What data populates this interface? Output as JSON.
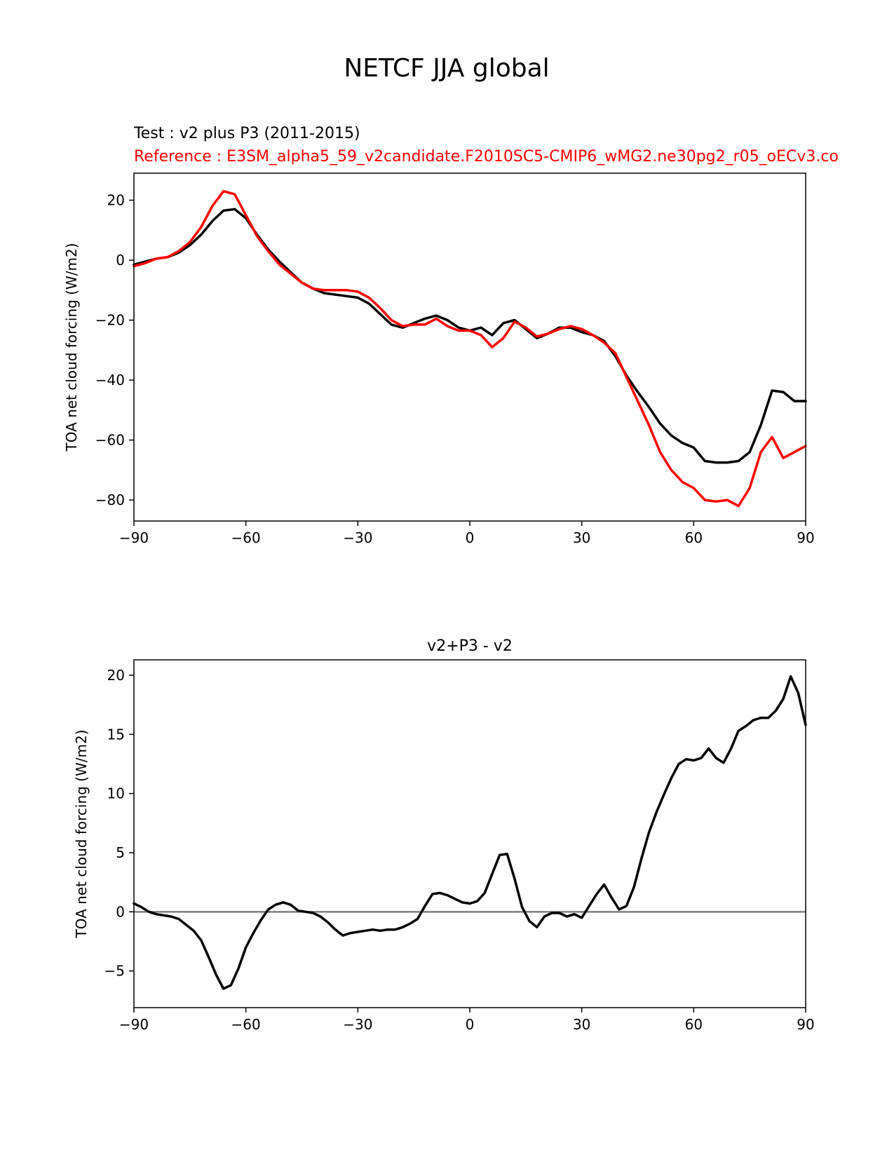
{
  "figure": {
    "title": "NETCF JJA global",
    "test_label": "Test : v2 plus P3 (2011-2015)",
    "reference_label": "Reference : E3SM_alpha5_59_v2candidate.F2010SC5-CMIP6_wMG2.ne30pg2_r05_oECv3.co"
  },
  "colors": {
    "test": "#000000",
    "reference": "#ff0000",
    "zero_line": "#808080",
    "axes": "#000000"
  },
  "chart_data": [
    {
      "type": "line",
      "title": "",
      "xlabel": "",
      "ylabel": "TOA net cloud forcing (W/m2)",
      "xlim": [
        -90,
        90
      ],
      "ylim": [
        -87,
        29
      ],
      "xticks": [
        -90,
        -60,
        -30,
        0,
        30,
        60,
        90
      ],
      "xtick_labels": [
        "−90",
        "−60",
        "−30",
        "0",
        "30",
        "60",
        "90"
      ],
      "yticks": [
        20,
        0,
        -20,
        -40,
        -60,
        -80
      ],
      "ytick_labels": [
        "20",
        "0",
        "−20",
        "−40",
        "−60",
        "−80"
      ],
      "series": [
        {
          "name": "Test",
          "color": "#000000",
          "x": [
            -90,
            -87,
            -84,
            -81,
            -78,
            -75,
            -72,
            -69,
            -66,
            -63,
            -60,
            -57,
            -54,
            -51,
            -48,
            -45,
            -42,
            -39,
            -36,
            -33,
            -30,
            -27,
            -24,
            -21,
            -18,
            -15,
            -12,
            -9,
            -6,
            -3,
            0,
            3,
            6,
            9,
            12,
            15,
            18,
            21,
            24,
            27,
            30,
            33,
            36,
            39,
            42,
            45,
            48,
            51,
            54,
            57,
            60,
            63,
            66,
            69,
            72,
            75,
            78,
            81,
            84,
            87,
            90
          ],
          "y": [
            -1.5,
            -0.5,
            0.5,
            1.0,
            2.5,
            5.0,
            8.5,
            13.0,
            16.5,
            17.0,
            14.0,
            8.5,
            3.5,
            -0.5,
            -4.0,
            -7.5,
            -9.5,
            -11.0,
            -11.5,
            -12.0,
            -12.5,
            -14.5,
            -18.0,
            -21.5,
            -22.5,
            -21.0,
            -19.5,
            -18.5,
            -20.0,
            -22.5,
            -23.5,
            -22.5,
            -25.0,
            -21.0,
            -20.0,
            -23.0,
            -26.0,
            -24.5,
            -22.5,
            -22.5,
            -24.0,
            -25.0,
            -27.0,
            -32.0,
            -38.5,
            -44.0,
            -49.0,
            -54.5,
            -58.5,
            -61.0,
            -62.5,
            -67.0,
            -67.5,
            -67.5,
            -67.0,
            -64.0,
            -55.0,
            -43.5,
            -44.0,
            -47.0,
            -47.0
          ]
        },
        {
          "name": "Reference",
          "color": "#ff0000",
          "x": [
            -90,
            -87,
            -84,
            -81,
            -78,
            -75,
            -72,
            -69,
            -66,
            -63,
            -60,
            -57,
            -54,
            -51,
            -48,
            -45,
            -42,
            -39,
            -36,
            -33,
            -30,
            -27,
            -24,
            -21,
            -18,
            -15,
            -12,
            -9,
            -6,
            -3,
            0,
            3,
            6,
            9,
            12,
            15,
            18,
            21,
            24,
            27,
            30,
            33,
            36,
            39,
            42,
            45,
            48,
            51,
            54,
            57,
            60,
            63,
            66,
            69,
            72,
            75,
            78,
            81,
            84,
            87,
            90
          ],
          "y": [
            -2.0,
            -1.0,
            0.5,
            1.0,
            3.0,
            6.0,
            11.0,
            18.0,
            23.0,
            22.0,
            15.0,
            8.0,
            3.0,
            -1.5,
            -4.5,
            -7.5,
            -9.5,
            -10.0,
            -10.0,
            -10.0,
            -10.5,
            -12.5,
            -16.0,
            -20.0,
            -22.0,
            -21.5,
            -21.5,
            -19.5,
            -22.0,
            -23.5,
            -23.5,
            -25.0,
            -29.0,
            -26.0,
            -20.5,
            -22.5,
            -25.5,
            -24.5,
            -23.0,
            -22.0,
            -23.0,
            -25.0,
            -27.5,
            -31.0,
            -39.0,
            -47.0,
            -55.0,
            -64.0,
            -70.0,
            -74.0,
            -76.0,
            -80.0,
            -80.5,
            -80.0,
            -82.0,
            -76.0,
            -64.0,
            -59.0,
            -66.0,
            -64.0,
            -62.0
          ]
        }
      ]
    },
    {
      "type": "line",
      "title": "v2+P3 - v2",
      "xlabel": "",
      "ylabel": "TOA net cloud forcing (W/m2)",
      "xlim": [
        -90,
        90
      ],
      "ylim": [
        -8.1,
        21.3
      ],
      "xticks": [
        -90,
        -60,
        -30,
        0,
        30,
        60,
        90
      ],
      "xtick_labels": [
        "−90",
        "−60",
        "−30",
        "0",
        "30",
        "60",
        "90"
      ],
      "yticks": [
        20,
        15,
        10,
        5,
        0,
        -5
      ],
      "ytick_labels": [
        "20",
        "15",
        "10",
        "5",
        "0",
        "−5"
      ],
      "zero_line": 0,
      "series": [
        {
          "name": "Difference",
          "color": "#000000",
          "x": [
            -90,
            -88,
            -86,
            -84,
            -82,
            -80,
            -78,
            -76,
            -74,
            -72,
            -70,
            -68,
            -66,
            -64,
            -62,
            -60,
            -58,
            -56,
            -54,
            -52,
            -50,
            -48,
            -46,
            -44,
            -42,
            -40,
            -38,
            -36,
            -34,
            -32,
            -30,
            -28,
            -26,
            -24,
            -22,
            -20,
            -18,
            -16,
            -14,
            -12,
            -10,
            -8,
            -6,
            -4,
            -2,
            0,
            2,
            4,
            6,
            8,
            10,
            12,
            14,
            16,
            18,
            20,
            22,
            24,
            26,
            28,
            30,
            32,
            34,
            36,
            38,
            40,
            42,
            44,
            46,
            48,
            50,
            52,
            54,
            56,
            58,
            60,
            62,
            64,
            66,
            68,
            70,
            72,
            74,
            76,
            78,
            80,
            82,
            84,
            86,
            88,
            90
          ],
          "y": [
            0.7,
            0.4,
            0.0,
            -0.2,
            -0.3,
            -0.4,
            -0.6,
            -1.1,
            -1.6,
            -2.4,
            -3.8,
            -5.3,
            -6.5,
            -6.2,
            -4.8,
            -3.0,
            -1.8,
            -0.7,
            0.2,
            0.6,
            0.8,
            0.6,
            0.1,
            0.0,
            -0.1,
            -0.4,
            -0.9,
            -1.5,
            -2.0,
            -1.8,
            -1.7,
            -1.6,
            -1.5,
            -1.6,
            -1.5,
            -1.5,
            -1.3,
            -1.0,
            -0.6,
            0.5,
            1.5,
            1.6,
            1.4,
            1.1,
            0.8,
            0.7,
            0.9,
            1.6,
            3.2,
            4.8,
            4.9,
            2.8,
            0.4,
            -0.8,
            -1.3,
            -0.4,
            -0.1,
            -0.1,
            -0.4,
            -0.2,
            -0.5,
            0.5,
            1.5,
            2.3,
            1.2,
            0.2,
            0.5,
            2.1,
            4.5,
            6.7,
            8.4,
            9.9,
            11.3,
            12.5,
            12.9,
            12.8,
            13.0,
            13.8,
            13.0,
            12.6,
            13.8,
            15.3,
            15.7,
            16.2,
            16.4,
            16.4,
            17.0,
            18.0,
            19.9,
            18.5,
            15.8
          ]
        }
      ]
    }
  ]
}
